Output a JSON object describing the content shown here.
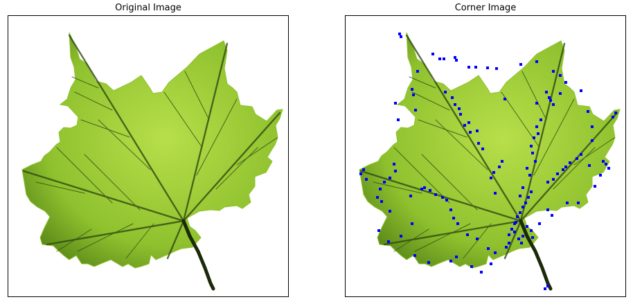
{
  "panels": {
    "left": {
      "title": "Original Image"
    },
    "right": {
      "title": "Corner Image"
    }
  },
  "colors": {
    "background": "#ffffff",
    "leaf_light": "#b7df4a",
    "leaf_mid": "#8fc12e",
    "leaf_dark": "#4f7c14",
    "vein": "#2f4a10",
    "stem": "#1b2a08",
    "corner_marker": "#0000ff"
  },
  "icons": {
    "marker": "corner-point-marker"
  }
}
